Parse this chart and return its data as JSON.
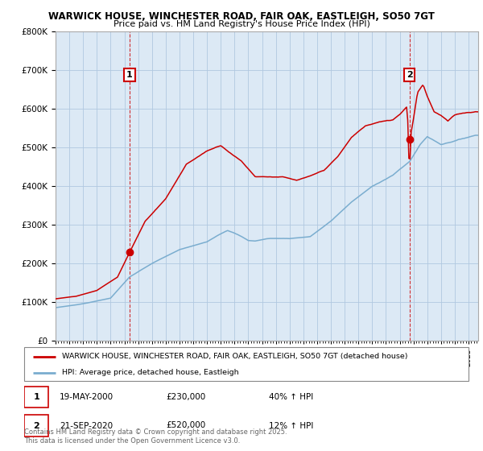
{
  "title1": "WARWICK HOUSE, WINCHESTER ROAD, FAIR OAK, EASTLEIGH, SO50 7GT",
  "title2": "Price paid vs. HM Land Registry's House Price Index (HPI)",
  "legend_label_red": "WARWICK HOUSE, WINCHESTER ROAD, FAIR OAK, EASTLEIGH, SO50 7GT (detached house)",
  "legend_label_blue": "HPI: Average price, detached house, Eastleigh",
  "annotation1_label": "1",
  "annotation1_date": "19-MAY-2000",
  "annotation1_price": "£230,000",
  "annotation1_hpi": "40% ↑ HPI",
  "annotation1_year": 2000.38,
  "annotation1_value": 230000,
  "annotation2_label": "2",
  "annotation2_date": "21-SEP-2020",
  "annotation2_price": "£520,000",
  "annotation2_hpi": "12% ↑ HPI",
  "annotation2_year": 2020.72,
  "annotation2_value": 520000,
  "footer": "Contains HM Land Registry data © Crown copyright and database right 2025.\nThis data is licensed under the Open Government Licence v3.0.",
  "red_color": "#cc0000",
  "blue_color": "#7aadcf",
  "plot_bg_color": "#dce9f5",
  "background_color": "#ffffff",
  "grid_color": "#b0c8e0",
  "ylim": [
    0,
    800000
  ],
  "xlim_start": 1995.0,
  "xlim_end": 2025.7
}
